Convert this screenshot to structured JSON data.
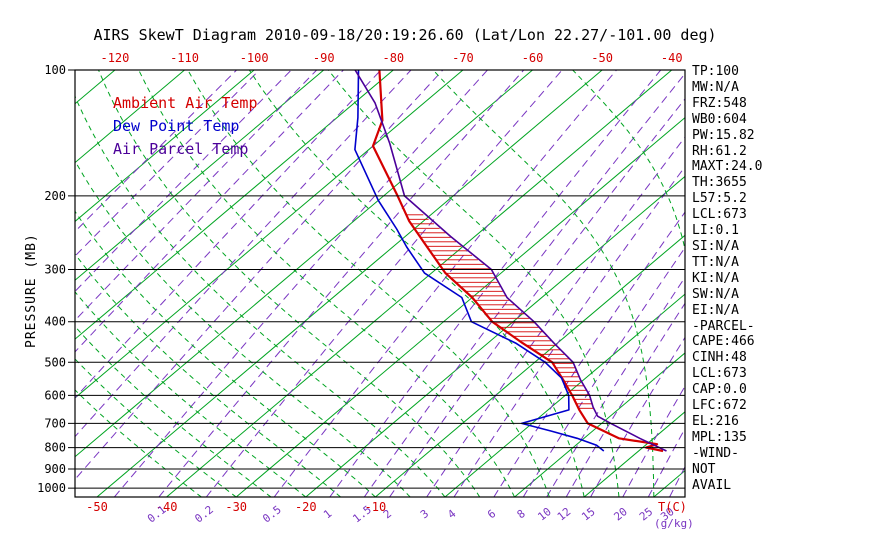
{
  "title": "AIRS SkewT Diagram 2010-09-18/20:19:26.60 (Lat/Lon 22.27/-101.00 deg)",
  "colors": {
    "red": "#d40000",
    "green": "#00a421",
    "purple_dash": "#7a36c2",
    "blue": "#0000cc",
    "parcel_purple": "#4b0099",
    "black": "#000000",
    "background": "#ffffff"
  },
  "legend": {
    "items": [
      {
        "label": "Ambient Air Temp",
        "color": "#d40000"
      },
      {
        "label": "Dew Point Temp",
        "color": "#0000cc"
      },
      {
        "label": "Air Parcel Temp",
        "color": "#4b0099"
      }
    ]
  },
  "axes": {
    "pressure_axis_label": "PRESSURE (MB)",
    "pressure_ticks": [
      100,
      200,
      300,
      400,
      500,
      600,
      700,
      800,
      900,
      1000
    ],
    "top_temp_ticks": [
      -120,
      -110,
      -100,
      -90,
      -80,
      -70,
      -60,
      -50,
      -40
    ],
    "bottom_temp_ticks": [
      -50,
      -40,
      -30,
      -20,
      -10
    ],
    "temp_unit_label": "T(C)",
    "mixing_unit_label": "(g/kg)"
  },
  "stats_panel": {
    "lines": [
      "TP:100",
      "MW:N/A",
      "FRZ:548",
      "WB0:604",
      "PW:15.82",
      "RH:61.2",
      "MAXT:24.0",
      "TH:3655",
      "L57:5.2",
      "LCL:673",
      "LI:0.1",
      "SI:N/A",
      "TT:N/A",
      "KI:N/A",
      "SW:N/A",
      "EI:N/A",
      "-PARCEL-",
      "CAPE:466",
      "CINH:48",
      "LCL:673",
      "CAP:0.0",
      "LFC:672",
      "EL:216",
      "MPL:135",
      "-WIND-",
      "NOT",
      "AVAIL"
    ]
  },
  "chart_data": {
    "type": "line",
    "diagram": "skew-t-log-p",
    "title": "AIRS SkewT Diagram 2010-09-18/20:19:26.60 (Lat/Lon 22.27/-101.00 deg)",
    "xlabel": "T(C)",
    "ylabel": "PRESSURE (MB)",
    "y_scale": "log",
    "pressure_range_mb": [
      100,
      1050
    ],
    "series": [
      {
        "name": "Ambient Air Temp",
        "color": "#d40000",
        "width": 2.2,
        "points_p_T": [
          [
            100,
            -82
          ],
          [
            132,
            -73
          ],
          [
            152,
            -70
          ],
          [
            200,
            -58
          ],
          [
            230,
            -52
          ],
          [
            260,
            -46
          ],
          [
            306,
            -38
          ],
          [
            350,
            -30
          ],
          [
            400,
            -23
          ],
          [
            450,
            -15
          ],
          [
            500,
            -7.5
          ],
          [
            550,
            -3
          ],
          [
            600,
            1
          ],
          [
            650,
            4.5
          ],
          [
            700,
            8
          ],
          [
            760,
            15
          ],
          [
            785,
            21.5
          ],
          [
            800,
            20.5
          ],
          [
            815,
            23.5
          ]
        ]
      },
      {
        "name": "Dew Point Temp",
        "color": "#0000cc",
        "width": 1.6,
        "points_p_T": [
          [
            100,
            -85
          ],
          [
            130,
            -77
          ],
          [
            155,
            -72
          ],
          [
            205,
            -60
          ],
          [
            240,
            -52.5
          ],
          [
            265,
            -48
          ],
          [
            306,
            -41
          ],
          [
            350,
            -31.5
          ],
          [
            400,
            -26
          ],
          [
            450,
            -16
          ],
          [
            500,
            -8.5
          ],
          [
            545,
            -3.5
          ],
          [
            600,
            0.5
          ],
          [
            650,
            3
          ],
          [
            700,
            -1.5
          ],
          [
            730,
            4
          ],
          [
            760,
            9
          ],
          [
            790,
            13
          ],
          [
            815,
            15
          ]
        ]
      },
      {
        "name": "Air Parcel Temp",
        "color": "#4b0099",
        "width": 1.6,
        "points_p_T": [
          [
            100,
            -85.5
          ],
          [
            120,
            -77
          ],
          [
            150,
            -68
          ],
          [
            200,
            -57
          ],
          [
            250,
            -43.5
          ],
          [
            300,
            -32
          ],
          [
            350,
            -25
          ],
          [
            400,
            -17
          ],
          [
            450,
            -10.5
          ],
          [
            500,
            -4.5
          ],
          [
            550,
            -0.5
          ],
          [
            600,
            3.5
          ],
          [
            640,
            6
          ],
          [
            673,
            8.2
          ],
          [
            700,
            11.3
          ],
          [
            760,
            18
          ],
          [
            815,
            24
          ]
        ]
      }
    ],
    "background": {
      "isotherms_C": {
        "min": -120,
        "max": 40,
        "step": 10
      },
      "mixing_ratio_lines_g_kg": [
        0.1,
        0.2,
        0.5,
        1,
        1.5,
        2,
        3,
        4,
        6,
        8,
        10,
        12,
        15,
        20,
        25,
        30
      ],
      "mixing_ratio_minor_lines_g_kg": [
        0.0001,
        0.0002,
        0.0005,
        0.001,
        0.002,
        0.005,
        0.01,
        0.02,
        0.05
      ],
      "moist_adiabats_start_C": {
        "min": -35,
        "max": 40,
        "step": 5
      }
    },
    "hatch": {
      "between": [
        "Ambient Air Temp",
        "Air Parcel Temp"
      ],
      "pressure_range_mb": [
        222,
        650
      ],
      "color": "#d40000"
    }
  }
}
